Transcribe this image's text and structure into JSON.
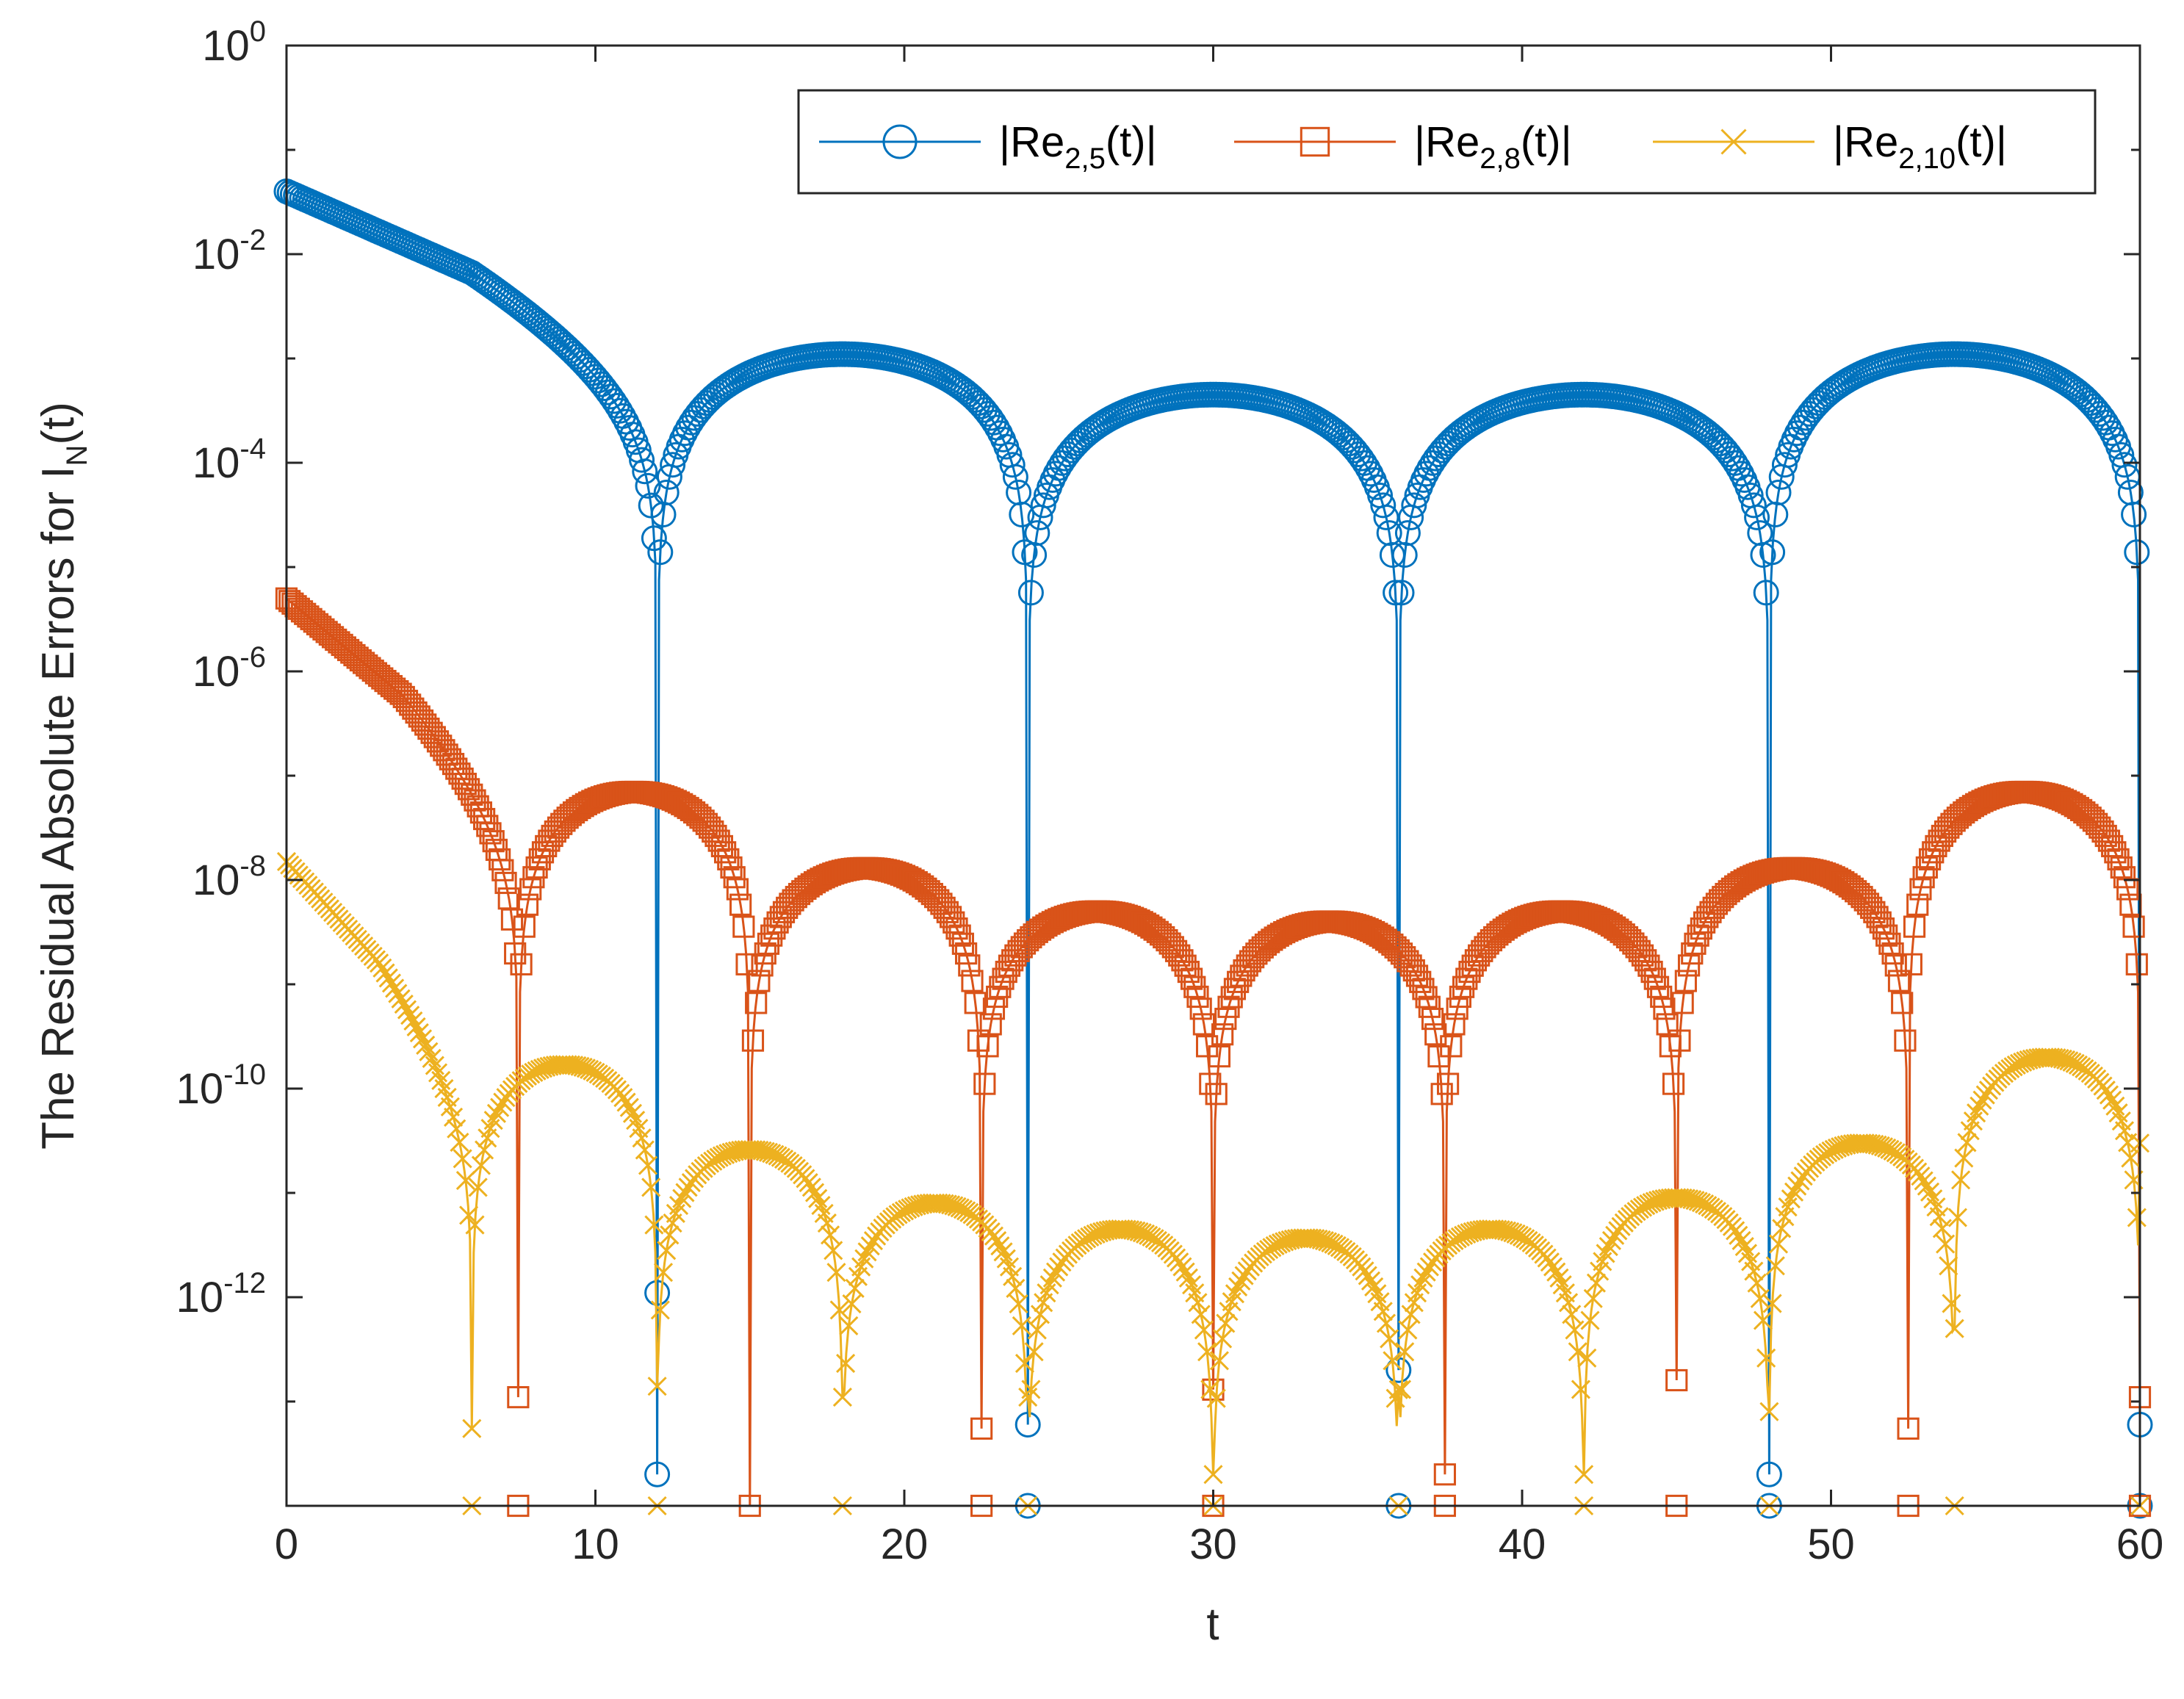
{
  "chart_data": {
    "type": "line",
    "yscale": "log",
    "title": "",
    "xlabel": "t",
    "ylabel": {
      "text": "The Residual Absolute Errors for I",
      "subscript": "N",
      "suffix": "(t)"
    },
    "xlim": [
      0,
      60
    ],
    "ylim": [
      1e-14,
      1
    ],
    "x_ticks": [
      0,
      10,
      20,
      30,
      40,
      50,
      60
    ],
    "x_tick_labels": [
      "0",
      "10",
      "20",
      "30",
      "40",
      "50",
      "60"
    ],
    "y_ticks": [
      {
        "value": 1e-12,
        "base": "10",
        "exponent": "-12"
      },
      {
        "value": 1e-10,
        "base": "10",
        "exponent": "-10"
      },
      {
        "value": 1e-08,
        "base": "10",
        "exponent": "-8"
      },
      {
        "value": 1e-06,
        "base": "10",
        "exponent": "-6"
      },
      {
        "value": 0.0001,
        "base": "10",
        "exponent": "-4"
      },
      {
        "value": 0.01,
        "base": "10",
        "exponent": "-2"
      },
      {
        "value": 1,
        "base": "10",
        "exponent": "0"
      }
    ],
    "grid": false,
    "legend_position": "top-right",
    "series": [
      {
        "name": "|Re2,5(t)|",
        "legend": {
          "prefix": "|Re",
          "sub": "2,5",
          "suffix": "(t)|"
        },
        "color": "#0072BD",
        "marker": "circle",
        "start": 0.04,
        "zeros": [
          12,
          24,
          36,
          48,
          60
        ],
        "lobe_peaks": [
          0.0011,
          0.00045,
          0.00045,
          0.0011
        ],
        "dips": [
          {
            "t": 12,
            "value": 2e-14
          },
          {
            "t": 24,
            "value": 6e-14
          },
          {
            "t": 36,
            "value": 2e-13
          },
          {
            "t": 48,
            "value": 2e-14
          },
          {
            "t": 60,
            "value": 6e-14
          }
        ]
      },
      {
        "name": "|Re2,8(t)|",
        "legend": {
          "prefix": "|Re",
          "sub": "2,8",
          "suffix": "(t)|"
        },
        "color": "#D95319",
        "marker": "square",
        "start": 5e-06,
        "zeros": [
          7.5,
          15,
          22.5,
          30,
          37.5,
          45,
          52.5,
          60
        ],
        "lobe_peaks": [
          7e-08,
          1.3e-08,
          5e-09,
          4e-09,
          5e-09,
          1.3e-08,
          7e-08
        ],
        "dips": [
          {
            "t": 7.5,
            "value": 1.1e-13
          },
          {
            "t": 22.5,
            "value": 5.5e-14
          },
          {
            "t": 30,
            "value": 1.3e-13
          },
          {
            "t": 37.5,
            "value": 2e-14
          },
          {
            "t": 45,
            "value": 1.6e-13
          },
          {
            "t": 52.5,
            "value": 5.5e-14
          },
          {
            "t": 60,
            "value": 1.1e-13
          }
        ]
      },
      {
        "name": "|Re2,10(t)|",
        "legend": {
          "prefix": "|Re",
          "sub": "2,10",
          "suffix": "(t)|"
        },
        "color": "#EDB120",
        "marker": "x",
        "start": 1.5e-08,
        "zeros": [
          6,
          12,
          18,
          24,
          30,
          36,
          42,
          48,
          54,
          60
        ],
        "lobe_peaks": [
          1.7e-10,
          2.6e-11,
          8e-12,
          4.5e-12,
          3.7e-12,
          4.5e-12,
          9e-12,
          3e-11,
          2e-10
        ],
        "dips": [
          {
            "t": 6,
            "value": 5.5e-14
          },
          {
            "t": 12,
            "value": 1.4e-13
          },
          {
            "t": 18,
            "value": 1.1e-13
          },
          {
            "t": 24,
            "value": 1.1e-13
          },
          {
            "t": 30,
            "value": 2e-14
          },
          {
            "t": 36,
            "value": 1.3e-13
          },
          {
            "t": 42,
            "value": 2e-14
          },
          {
            "t": 48,
            "value": 8e-14
          },
          {
            "t": 54,
            "value": 5e-13
          },
          {
            "t": 60,
            "value": 3e-11
          }
        ]
      }
    ]
  }
}
